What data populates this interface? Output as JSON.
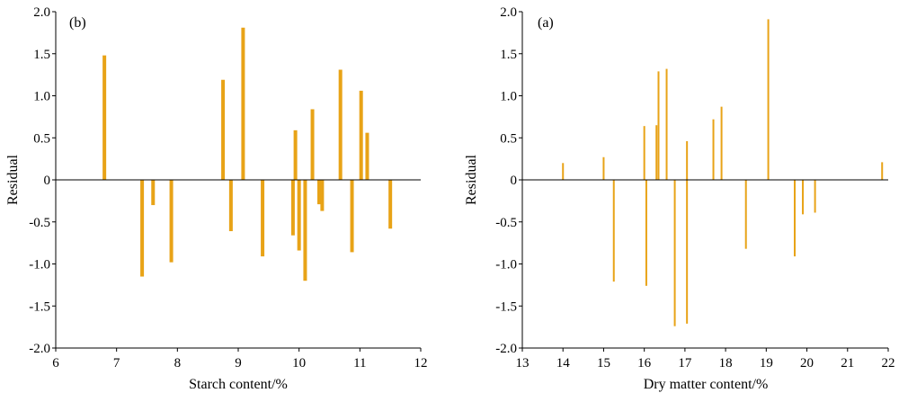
{
  "chart_data": [
    {
      "type": "bar",
      "panel_label": "(b)",
      "xlabel": "Starch content/%",
      "ylabel": "Residual",
      "xlim": [
        6,
        12
      ],
      "ylim": [
        -2.0,
        2.0
      ],
      "xticks": [
        6,
        7,
        8,
        9,
        10,
        11,
        12
      ],
      "yticks": [
        "-2.0",
        "-1.5",
        "-1.0",
        "-0.5",
        "0",
        "0.5",
        "1.0",
        "1.5",
        "2.0"
      ],
      "bar_color": "#E8A317",
      "grid": false,
      "points": [
        {
          "x": 6.8,
          "y": 1.48
        },
        {
          "x": 7.42,
          "y": -1.15
        },
        {
          "x": 7.6,
          "y": -0.3
        },
        {
          "x": 7.9,
          "y": -0.98
        },
        {
          "x": 8.75,
          "y": 1.19
        },
        {
          "x": 8.88,
          "y": -0.61
        },
        {
          "x": 9.08,
          "y": 1.81
        },
        {
          "x": 9.4,
          "y": -0.91
        },
        {
          "x": 9.9,
          "y": -0.66
        },
        {
          "x": 9.94,
          "y": 0.59
        },
        {
          "x": 10.0,
          "y": -0.84
        },
        {
          "x": 10.1,
          "y": -1.2
        },
        {
          "x": 10.22,
          "y": 0.84
        },
        {
          "x": 10.33,
          "y": -0.29
        },
        {
          "x": 10.38,
          "y": -0.37
        },
        {
          "x": 10.68,
          "y": 1.31
        },
        {
          "x": 10.87,
          "y": -0.86
        },
        {
          "x": 11.02,
          "y": 1.06
        },
        {
          "x": 11.12,
          "y": 0.56
        },
        {
          "x": 11.5,
          "y": -0.58
        }
      ]
    },
    {
      "type": "bar",
      "panel_label": "(a)",
      "xlabel": "Dry matter content/%",
      "ylabel": "Residual",
      "xlim": [
        13,
        22
      ],
      "ylim": [
        -2.0,
        2.0
      ],
      "xticks": [
        13,
        14,
        15,
        16,
        17,
        18,
        19,
        20,
        21,
        22
      ],
      "yticks": [
        "-2.0",
        "-1.5",
        "-1.0",
        "-0.5",
        "0",
        "0.5",
        "1.0",
        "1.5",
        "2.0"
      ],
      "bar_color": "#E8A317",
      "grid": false,
      "points": [
        {
          "x": 14.0,
          "y": 0.2
        },
        {
          "x": 15.0,
          "y": 0.27
        },
        {
          "x": 15.25,
          "y": -1.21
        },
        {
          "x": 16.0,
          "y": 0.64
        },
        {
          "x": 16.05,
          "y": -1.26
        },
        {
          "x": 16.3,
          "y": 0.65
        },
        {
          "x": 16.35,
          "y": 1.29
        },
        {
          "x": 16.55,
          "y": 1.32
        },
        {
          "x": 16.75,
          "y": -1.74
        },
        {
          "x": 17.05,
          "y": 0.46
        },
        {
          "x": 17.05,
          "y": -1.71
        },
        {
          "x": 17.7,
          "y": 0.72
        },
        {
          "x": 17.9,
          "y": 0.87
        },
        {
          "x": 18.5,
          "y": -0.82
        },
        {
          "x": 19.05,
          "y": 1.91
        },
        {
          "x": 19.7,
          "y": -0.91
        },
        {
          "x": 19.9,
          "y": -0.41
        },
        {
          "x": 20.2,
          "y": -0.39
        },
        {
          "x": 21.85,
          "y": 0.21
        }
      ]
    }
  ]
}
